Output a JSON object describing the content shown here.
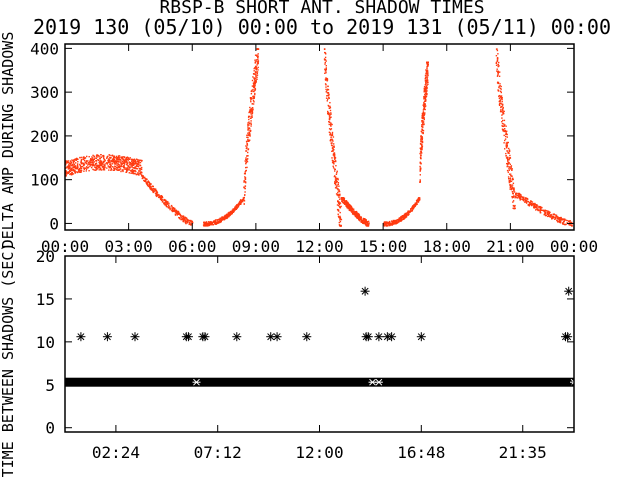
{
  "chart_data": [
    {
      "type": "scatter",
      "title": "RBSP-B SHORT ANT. SHADOW TIMES",
      "subtitle": "2019 130 (05/10) 00:00 to 2019 131 (05/11) 00:00",
      "ylabel": "DELTA AMP DURING SHADOWS",
      "xlabel": "",
      "xlim": [
        0,
        24
      ],
      "ylim": [
        -15,
        410
      ],
      "x_ticks": [
        "00:00",
        "03:00",
        "06:00",
        "09:00",
        "12:00",
        "15:00",
        "18:00",
        "21:00",
        "00:00"
      ],
      "y_ticks": [
        "0",
        "100",
        "200",
        "300",
        "400"
      ],
      "point_color": "#ff3a10",
      "clusters": [
        {
          "start_hour": 0.0,
          "end_hour": 3.6,
          "shape": "plateau",
          "low": 95,
          "high": 160
        },
        {
          "start_hour": 3.6,
          "end_hour": 6.0,
          "shape": "decline",
          "low": 0,
          "high": 110
        },
        {
          "start_hour": 6.5,
          "end_hour": 8.4,
          "shape": "rise",
          "low": 0,
          "high": 60
        },
        {
          "start_hour": 8.4,
          "end_hour": 9.1,
          "shape": "spike",
          "low": 50,
          "high": 400
        },
        {
          "start_hour": 12.2,
          "end_hour": 13.0,
          "shape": "fall",
          "low": 0,
          "high": 400
        },
        {
          "start_hour": 13.0,
          "end_hour": 14.3,
          "shape": "decline",
          "low": 0,
          "high": 60
        },
        {
          "start_hour": 15.0,
          "end_hour": 16.7,
          "shape": "rise",
          "low": 0,
          "high": 60
        },
        {
          "start_hour": 16.7,
          "end_hour": 17.1,
          "shape": "spike",
          "low": 100,
          "high": 370
        },
        {
          "start_hour": 20.3,
          "end_hour": 21.2,
          "shape": "fall",
          "low": 40,
          "high": 400
        },
        {
          "start_hour": 21.2,
          "end_hour": 23.9,
          "shape": "decline",
          "low": 0,
          "high": 70
        }
      ]
    },
    {
      "type": "scatter",
      "ylabel": "TIME BETWEEN SHADOWS (SEC)",
      "xlabel": "",
      "xlim": [
        0,
        24
      ],
      "ylim": [
        -0.5,
        20
      ],
      "x_ticks": [
        "02:24",
        "07:12",
        "12:00",
        "16:48",
        "21:35"
      ],
      "x_tick_hours": [
        2.4,
        7.2,
        12.0,
        16.8,
        21.583
      ],
      "y_ticks": [
        "0",
        "5",
        "10",
        "15",
        "20"
      ],
      "marker": "asterisk",
      "baseline": {
        "value": 5.3,
        "start_hour": 0.0,
        "end_hour": 24.0
      },
      "outliers": [
        {
          "hour": 0.75,
          "value": 10.6
        },
        {
          "hour": 2.0,
          "value": 10.6
        },
        {
          "hour": 3.3,
          "value": 10.6
        },
        {
          "hour": 5.72,
          "value": 10.6
        },
        {
          "hour": 5.82,
          "value": 10.6
        },
        {
          "hour": 6.5,
          "value": 10.6
        },
        {
          "hour": 6.6,
          "value": 10.6
        },
        {
          "hour": 8.1,
          "value": 10.6
        },
        {
          "hour": 9.7,
          "value": 10.6
        },
        {
          "hour": 10.0,
          "value": 10.6
        },
        {
          "hour": 11.4,
          "value": 10.6
        },
        {
          "hour": 14.15,
          "value": 15.9
        },
        {
          "hour": 14.2,
          "value": 10.6
        },
        {
          "hour": 14.3,
          "value": 10.6
        },
        {
          "hour": 14.8,
          "value": 10.6
        },
        {
          "hour": 15.2,
          "value": 10.6
        },
        {
          "hour": 15.4,
          "value": 10.6
        },
        {
          "hour": 16.8,
          "value": 10.6
        },
        {
          "hour": 23.6,
          "value": 10.6
        },
        {
          "hour": 23.7,
          "value": 10.6
        },
        {
          "hour": 23.75,
          "value": 15.9
        }
      ]
    }
  ]
}
